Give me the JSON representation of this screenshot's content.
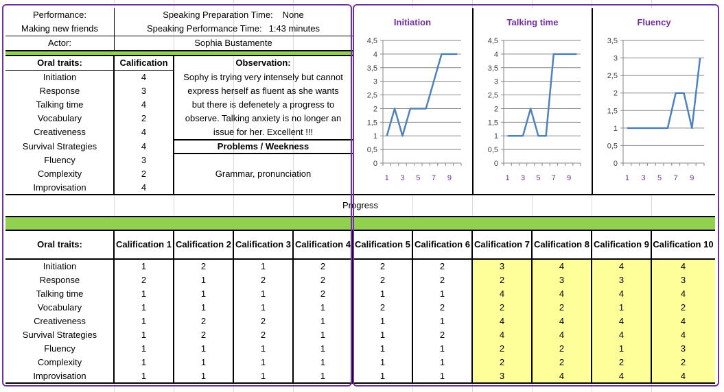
{
  "header": {
    "performance_label": "Performance:",
    "performance_value": "Making new friends",
    "prep_time_label": "Speaking Preparation Time:",
    "prep_time_value": "None",
    "perf_time_label": "Speaking Performance Time:",
    "perf_time_value": "1:43 minutes",
    "actor_label": "Actor:",
    "actor_value": "Sophia Bustamente"
  },
  "summary": {
    "col_traits": "Oral traits:",
    "col_calif": "Calification",
    "col_observation": "Observation:",
    "rows": [
      {
        "trait": "Initiation",
        "value": "4"
      },
      {
        "trait": "Response",
        "value": "3"
      },
      {
        "trait": "Talking time",
        "value": "4"
      },
      {
        "trait": "Vocabulary",
        "value": "2"
      },
      {
        "trait": "Creativeness",
        "value": "4"
      },
      {
        "trait": "Survival Strategies",
        "value": "4"
      },
      {
        "trait": "Fluency",
        "value": "3"
      },
      {
        "trait": "Complexity",
        "value": "2"
      },
      {
        "trait": "Improvisation",
        "value": "4"
      }
    ],
    "observation_lines": [
      "Sophy is trying very intensely but cannot",
      "express herself as fluent as she wants",
      "but there is defenetely a progress to",
      "observe. Talking anxiety is no longer an",
      "issue for her. Excellent !!!"
    ],
    "problems_title": "Problems / Weekness",
    "problems_text": "Grammar, pronunciation"
  },
  "progress": {
    "title": "Progress",
    "col_traits": "Oral traits:",
    "columns": [
      "Calification 1",
      "Calification 2",
      "Calification 3",
      "Calification 4",
      "Calification 5",
      "Calification 6",
      "Calification 7",
      "Calification 8",
      "Calification 9",
      "Calification 10"
    ],
    "rows": [
      {
        "trait": "Initiation",
        "values": [
          "1",
          "2",
          "1",
          "2",
          "2",
          "2",
          "3",
          "4",
          "4",
          "4"
        ]
      },
      {
        "trait": "Response",
        "values": [
          "2",
          "1",
          "2",
          "2",
          "2",
          "2",
          "2",
          "3",
          "3",
          "3"
        ]
      },
      {
        "trait": "Talking time",
        "values": [
          "1",
          "1",
          "1",
          "2",
          "1",
          "1",
          "4",
          "4",
          "4",
          "4"
        ]
      },
      {
        "trait": "Vocabulary",
        "values": [
          "1",
          "1",
          "1",
          "1",
          "2",
          "2",
          "2",
          "2",
          "1",
          "2"
        ]
      },
      {
        "trait": "Creativeness",
        "values": [
          "1",
          "2",
          "2",
          "1",
          "1",
          "1",
          "4",
          "4",
          "4",
          "4"
        ]
      },
      {
        "trait": "Survival Strategies",
        "values": [
          "1",
          "2",
          "2",
          "1",
          "1",
          "2",
          "4",
          "4",
          "4",
          "4"
        ]
      },
      {
        "trait": "Fluency",
        "values": [
          "1",
          "1",
          "1",
          "1",
          "1",
          "1",
          "2",
          "2",
          "1",
          "3"
        ]
      },
      {
        "trait": "Complexity",
        "values": [
          "1",
          "1",
          "1",
          "1",
          "1",
          "1",
          "2",
          "2",
          "2",
          "2"
        ]
      },
      {
        "trait": "Improvisation",
        "values": [
          "1",
          "1",
          "1",
          "1",
          "1",
          "1",
          "3",
          "4",
          "4",
          "4"
        ]
      }
    ]
  },
  "colors": {
    "line": "#4f81bd",
    "title": "#7030a0",
    "highlight": "#ffff99",
    "band": "#92d050",
    "frame": "#7030a0"
  },
  "chart_data": [
    {
      "type": "line",
      "title": "Initiation",
      "x": [
        1,
        2,
        3,
        4,
        5,
        6,
        7,
        8,
        9,
        10
      ],
      "values": [
        1,
        2,
        1,
        2,
        2,
        2,
        3,
        4,
        4,
        4
      ],
      "ylim": [
        0,
        4.5
      ],
      "yticks": [
        "0",
        "0,5",
        "1",
        "1,5",
        "2",
        "2,5",
        "3",
        "3,5",
        "4",
        "4,5"
      ],
      "xticks": [
        "1",
        "3",
        "5",
        "7",
        "9"
      ],
      "grid": true
    },
    {
      "type": "line",
      "title": "Talking time",
      "x": [
        1,
        2,
        3,
        4,
        5,
        6,
        7,
        8,
        9,
        10
      ],
      "values": [
        1,
        1,
        1,
        2,
        1,
        1,
        4,
        4,
        4,
        4
      ],
      "ylim": [
        0,
        4.5
      ],
      "yticks": [
        "0",
        "0,5",
        "1",
        "1,5",
        "2",
        "2,5",
        "3",
        "3,5",
        "4",
        "4,5"
      ],
      "xticks": [
        "1",
        "3",
        "5",
        "7",
        "9"
      ],
      "grid": true
    },
    {
      "type": "line",
      "title": "Fluency",
      "x": [
        1,
        2,
        3,
        4,
        5,
        6,
        7,
        8,
        9,
        10
      ],
      "values": [
        1,
        1,
        1,
        1,
        1,
        1,
        2,
        2,
        1,
        3
      ],
      "ylim": [
        0,
        3.5
      ],
      "yticks": [
        "0",
        "0,5",
        "1",
        "1,5",
        "2",
        "2,5",
        "3",
        "3,5"
      ],
      "xticks": [
        "1",
        "3",
        "5",
        "7",
        "9"
      ],
      "grid": true
    }
  ]
}
